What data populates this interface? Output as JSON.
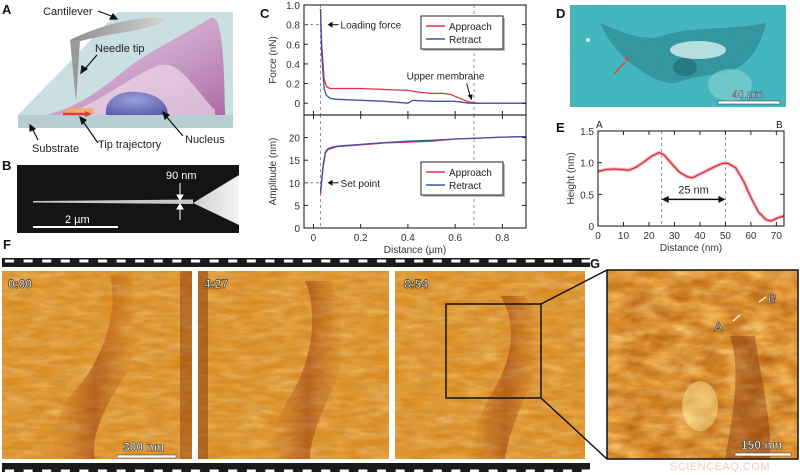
{
  "panels": {
    "A": {
      "label": "A",
      "annotations": {
        "cantilever": "Cantilever",
        "needle_tip": "Needle tip",
        "nucleus": "Nucleus",
        "substrate": "Substrate",
        "tip_trajectory": "Tip trajectory"
      },
      "colors": {
        "substrate": "#c9dde0",
        "cell": "#b56aa8",
        "nucleus": "#6f72b8",
        "trajectory": "#e8382c"
      }
    },
    "B": {
      "label": "B",
      "width_label": "90 nm",
      "scale_label": "2 µm"
    },
    "C": {
      "label": "C"
    },
    "D": {
      "label": "D",
      "scale_label": "40 µm",
      "colors": {
        "background": "#3fb7bf",
        "marker": "#d8483c"
      }
    },
    "E": {
      "label": "E"
    },
    "F": {
      "label": "F",
      "frames": [
        {
          "timestamp": "0:00",
          "scale_label": "300 nm"
        },
        {
          "timestamp": "4:27"
        },
        {
          "timestamp": "8:54"
        }
      ]
    },
    "G": {
      "label": "G",
      "marker_a": "A",
      "marker_b": "B",
      "scale_label": "150 nm"
    }
  },
  "watermark": "SCIENCEAQ.COM",
  "chart_data": [
    {
      "id": "C-top",
      "type": "line",
      "title": "",
      "xlabel": "Distance (µm)",
      "ylabel": "Force (nN)",
      "xlim": [
        -0.04,
        0.9
      ],
      "ylim": [
        -0.12,
        1.0
      ],
      "xticks": [
        0,
        0.2,
        0.4,
        0.6,
        0.8
      ],
      "yticks": [
        0,
        0.2,
        0.4,
        0.6,
        0.8,
        1.0
      ],
      "ytick_labels": [
        "0",
        "0.2",
        "0.4",
        "0.6",
        "0.8",
        "1.0"
      ],
      "vlines": [
        0.03,
        0.68
      ],
      "annotations": [
        {
          "text": "Loading force",
          "x": 0.03,
          "y": 0.8
        },
        {
          "text": "Upper membrane",
          "x": 0.67,
          "y": 0.02
        }
      ],
      "legend": [
        "Approach",
        "Retract"
      ],
      "series": [
        {
          "name": "Approach",
          "color": "#e0333c",
          "x": [
            0.03,
            0.035,
            0.045,
            0.055,
            0.07,
            0.1,
            0.2,
            0.3,
            0.4,
            0.45,
            0.5,
            0.55,
            0.58,
            0.62,
            0.66,
            0.7,
            0.8,
            0.9
          ],
          "y": [
            0.96,
            0.6,
            0.25,
            0.17,
            0.15,
            0.15,
            0.15,
            0.14,
            0.13,
            0.11,
            0.1,
            0.1,
            0.09,
            0.05,
            0.01,
            0.0,
            0.0,
            0.0
          ]
        },
        {
          "name": "Retract",
          "color": "#3d55a8",
          "x": [
            0.03,
            0.035,
            0.045,
            0.055,
            0.07,
            0.1,
            0.2,
            0.3,
            0.4,
            0.42,
            0.5,
            0.6,
            0.66,
            0.7,
            0.8,
            0.9
          ],
          "y": [
            0.96,
            0.5,
            0.15,
            0.08,
            0.05,
            0.04,
            0.03,
            0.02,
            0.0,
            0.03,
            0.02,
            0.02,
            0.0,
            0.0,
            0.0,
            0.0
          ]
        }
      ]
    },
    {
      "id": "C-bottom",
      "type": "line",
      "title": "",
      "xlabel": "Distance (µm)",
      "ylabel": "Amplitude (nm)",
      "xlim": [
        -0.04,
        0.9
      ],
      "ylim": [
        0,
        25
      ],
      "xticks": [
        0,
        0.2,
        0.4,
        0.6,
        0.8
      ],
      "xtick_labels": [
        "0",
        "0.2",
        "0.4",
        "0.6",
        "0.8"
      ],
      "yticks": [
        0,
        5,
        10,
        15,
        20
      ],
      "vlines": [
        0.03,
        0.68
      ],
      "annotations": [
        {
          "text": "Set point",
          "x": 0.03,
          "y": 10
        }
      ],
      "legend": [
        "Approach",
        "Retract"
      ],
      "series": [
        {
          "name": "Approach",
          "color": "#e0333c",
          "x": [
            0.03,
            0.04,
            0.05,
            0.06,
            0.08,
            0.1,
            0.2,
            0.3,
            0.4,
            0.5,
            0.6,
            0.7,
            0.8,
            0.9
          ],
          "y": [
            7.5,
            13,
            16.5,
            17.3,
            17.7,
            18.0,
            18.4,
            18.8,
            19.0,
            19.2,
            19.7,
            19.9,
            20.1,
            20.2
          ]
        },
        {
          "name": "Retract",
          "color": "#3d55a8",
          "x": [
            0.03,
            0.04,
            0.05,
            0.06,
            0.08,
            0.1,
            0.2,
            0.3,
            0.4,
            0.5,
            0.6,
            0.7,
            0.8,
            0.9
          ],
          "y": [
            8.0,
            13.5,
            16.8,
            17.5,
            17.9,
            18.1,
            18.5,
            18.9,
            19.2,
            19.4,
            19.7,
            19.9,
            20.1,
            20.2
          ]
        }
      ]
    },
    {
      "id": "E",
      "type": "line",
      "title": "",
      "xlabel": "Distance (nm)",
      "ylabel": "Height (nm)",
      "xlim": [
        0,
        73
      ],
      "ylim": [
        0,
        1.5
      ],
      "xticks": [
        0,
        10,
        20,
        30,
        40,
        50,
        60,
        70
      ],
      "yticks": [
        0,
        0.5,
        1.0,
        1.5
      ],
      "ytick_labels": [
        "0",
        "0.5",
        "1.0",
        "1.5"
      ],
      "top_labels": [
        {
          "text": "A",
          "x": 0
        },
        {
          "text": "B",
          "x": 73
        }
      ],
      "vlines": [
        25,
        50
      ],
      "span_annotation": {
        "text": "25 nm",
        "x1": 25,
        "x2": 50,
        "y": 0.42
      },
      "series": [
        {
          "name": "Height profile",
          "color": "#d2323c",
          "x": [
            0,
            3,
            6,
            10,
            12,
            15,
            18,
            21,
            24,
            26,
            29,
            32,
            35,
            37,
            40,
            43,
            46,
            49,
            51,
            54,
            57,
            60,
            63,
            66,
            68,
            70,
            73
          ],
          "y": [
            0.86,
            0.89,
            0.9,
            0.89,
            0.88,
            0.93,
            1.01,
            1.1,
            1.16,
            1.12,
            0.98,
            0.85,
            0.78,
            0.76,
            0.82,
            0.88,
            0.94,
            0.99,
            0.99,
            0.92,
            0.72,
            0.45,
            0.22,
            0.1,
            0.08,
            0.12,
            0.16
          ]
        }
      ]
    }
  ]
}
